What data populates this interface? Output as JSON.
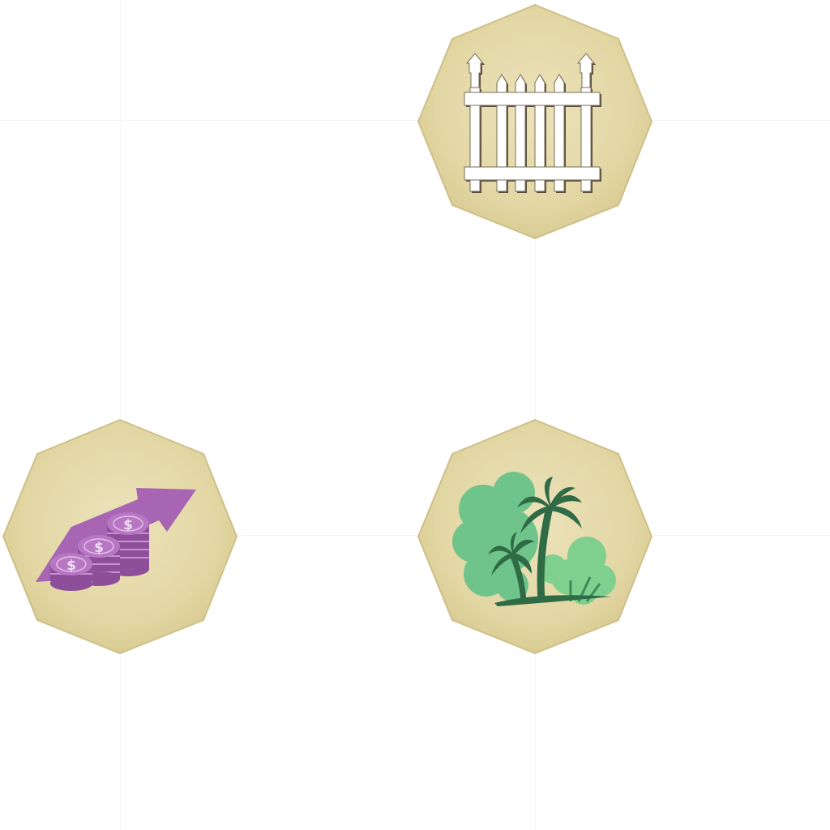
{
  "sheet": {
    "background": "#ffffff",
    "guide_color": "#f6f6f6"
  },
  "tokens": [
    {
      "id": "fence",
      "icon": "picket-fence-icon",
      "base_color": "#e3d7a5",
      "icon_color": "#ffffff",
      "outline_color": "#5a5040"
    },
    {
      "id": "income",
      "icon": "coin-stack-growth-icon",
      "base_color": "#e3d7a5",
      "icon_color": "#a865b4",
      "accent_color": "#d4a3db"
    },
    {
      "id": "park",
      "icon": "palm-trees-garden-icon",
      "base_color": "#e3d7a5",
      "icon_color": "#2f6b45",
      "accent_color": "#6ec48a"
    }
  ]
}
